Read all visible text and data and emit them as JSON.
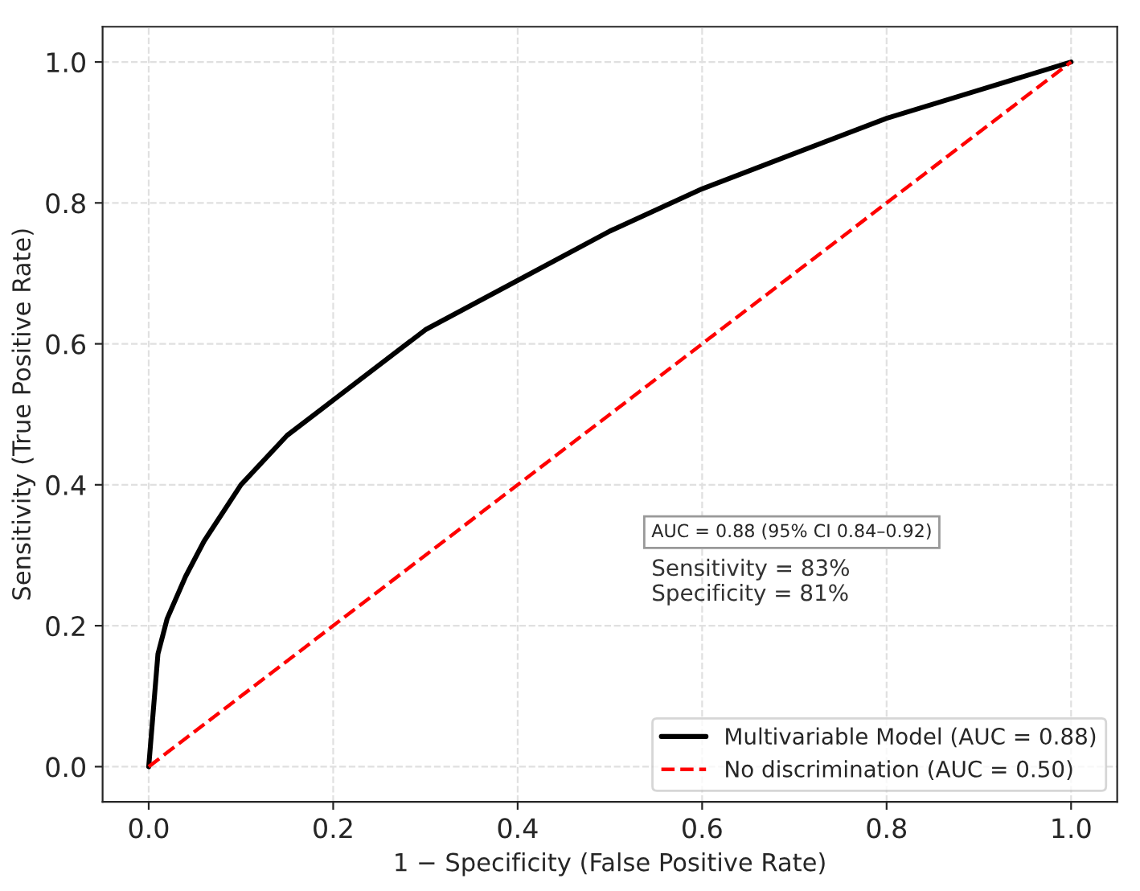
{
  "chart_data": {
    "type": "line",
    "xlabel": "1 − Specificity (False Positive Rate)",
    "ylabel": "Sensitivity (True Positive Rate)",
    "series": [
      {
        "name": "Multivariable Model (AUC = 0.88)",
        "color": "#000000",
        "line_style": "solid",
        "x": [
          0,
          0.01,
          0.02,
          0.04,
          0.06,
          0.1,
          0.15,
          0.2,
          0.3,
          0.4,
          0.5,
          0.6,
          0.7,
          0.8,
          0.9,
          1.0
        ],
        "values": [
          0,
          0.16,
          0.21,
          0.27,
          0.32,
          0.4,
          0.47,
          0.52,
          0.62,
          0.69,
          0.76,
          0.82,
          0.87,
          0.92,
          0.96,
          1.0
        ]
      },
      {
        "name": "No discrimination (AUC = 0.50)",
        "color": "#ff0000",
        "line_style": "dashed",
        "x": [
          0,
          1
        ],
        "values": [
          0,
          1
        ]
      }
    ],
    "annotations": [
      "AUC = 0.88 (95% CI 0.84–0.92)",
      "Sensitivity = 83%\nSpecificity = 81%"
    ],
    "xlim": [
      -0.05,
      1.05
    ],
    "ylim": [
      -0.05,
      1.05
    ],
    "xticks": [
      {
        "value": 0,
        "label": "0.0"
      },
      {
        "value": 0.2,
        "label": "0.2"
      },
      {
        "value": 0.4,
        "label": "0.4"
      },
      {
        "value": 0.6,
        "label": "0.6"
      },
      {
        "value": 0.8,
        "label": "0.8"
      },
      {
        "value": 1.0,
        "label": "1.0"
      }
    ],
    "yticks": [
      {
        "value": 0,
        "label": "0.0"
      },
      {
        "value": 0.2,
        "label": "0.2"
      },
      {
        "value": 0.4,
        "label": "0.4"
      },
      {
        "value": 0.6,
        "label": "0.6"
      },
      {
        "value": 0.8,
        "label": "0.8"
      },
      {
        "value": 1.0,
        "label": "1.0"
      }
    ],
    "grid": true,
    "legend": "bottom right"
  }
}
